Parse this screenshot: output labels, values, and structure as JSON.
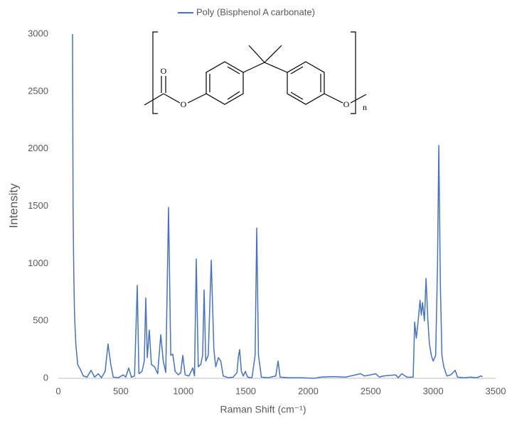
{
  "chart_data": {
    "type": "line",
    "xlabel": "Raman Shift (cm⁻¹)",
    "ylabel": "Intensity",
    "legend": "top",
    "grid": false,
    "xlim": [
      0,
      3500
    ],
    "xticks": [
      0,
      500,
      1000,
      1500,
      2000,
      2500,
      3000,
      3500
    ],
    "ylim": [
      0,
      3000
    ],
    "yticks": [
      0,
      500,
      1000,
      1500,
      2000,
      2500,
      3000
    ],
    "x": [
      114,
      118,
      124,
      130,
      140,
      155,
      175,
      200,
      230,
      262,
      290,
      320,
      345,
      375,
      398,
      420,
      440,
      480,
      520,
      540,
      563,
      585,
      610,
      632,
      645,
      670,
      688,
      700,
      712,
      728,
      745,
      770,
      795,
      820,
      840,
      860,
      882,
      900,
      916,
      935,
      960,
      980,
      996,
      1015,
      1045,
      1076,
      1090,
      1104,
      1120,
      1140,
      1155,
      1167,
      1180,
      1200,
      1224,
      1245,
      1260,
      1281,
      1300,
      1320,
      1360,
      1400,
      1430,
      1440,
      1451,
      1465,
      1480,
      1497,
      1515,
      1550,
      1575,
      1588,
      1602,
      1625,
      1680,
      1740,
      1759,
      1775,
      1850,
      1950,
      2050,
      2100,
      2200,
      2300,
      2380,
      2420,
      2450,
      2500,
      2540,
      2570,
      2600,
      2700,
      2720,
      2750,
      2790,
      2840,
      2852,
      2865,
      2880,
      2895,
      2905,
      2915,
      2930,
      2943,
      2958,
      2970,
      2985,
      3000,
      3020,
      3035,
      3045,
      3058,
      3070,
      3085,
      3110,
      3140,
      3160,
      3176,
      3195,
      3250,
      3300,
      3350,
      3380,
      3395
    ],
    "series": [
      {
        "name": "Poly (Bisphenol A carbonate)",
        "color": "#4472c4",
        "values": [
          3000,
          1500,
          900,
          550,
          300,
          120,
          80,
          20,
          10,
          70,
          10,
          40,
          5,
          60,
          300,
          120,
          10,
          5,
          30,
          10,
          90,
          10,
          20,
          810,
          40,
          60,
          150,
          700,
          180,
          420,
          120,
          100,
          40,
          380,
          150,
          50,
          1490,
          200,
          210,
          60,
          30,
          50,
          200,
          30,
          20,
          90,
          20,
          1040,
          100,
          120,
          200,
          770,
          150,
          200,
          1030,
          250,
          100,
          180,
          150,
          20,
          5,
          10,
          50,
          180,
          250,
          60,
          20,
          60,
          10,
          5,
          200,
          1310,
          200,
          10,
          5,
          20,
          150,
          10,
          5,
          5,
          0,
          10,
          15,
          10,
          30,
          40,
          20,
          30,
          40,
          10,
          20,
          30,
          5,
          40,
          10,
          10,
          490,
          350,
          500,
          680,
          550,
          660,
          500,
          870,
          500,
          300,
          200,
          150,
          200,
          1000,
          2030,
          800,
          200,
          100,
          20,
          30,
          50,
          70,
          10,
          5,
          10,
          5,
          20,
          15
        ]
      }
    ]
  },
  "structure": {
    "atoms": [
      "O",
      "O",
      "O"
    ],
    "repeat": "n"
  }
}
